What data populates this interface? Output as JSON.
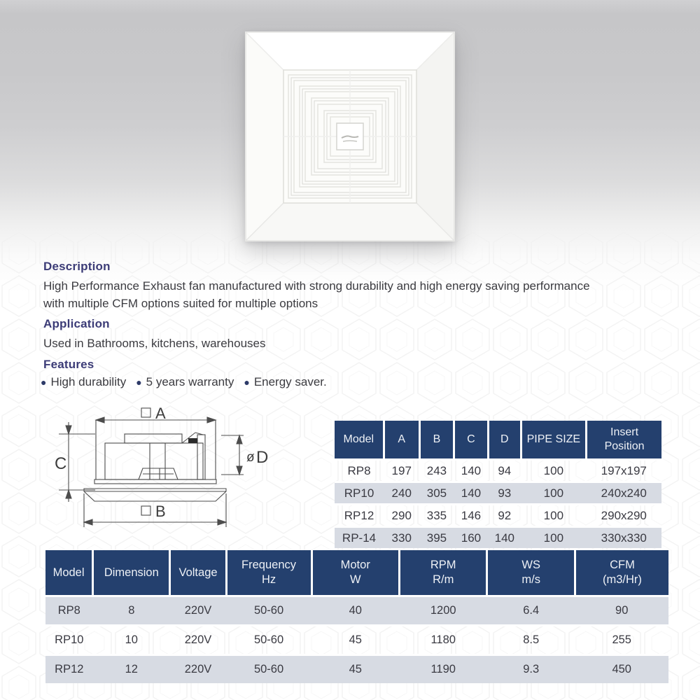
{
  "product": {
    "description_heading": "Description",
    "description_text": "High Performance Exhaust fan manufactured with strong durability and high energy saving performance with multiple CFM options suited for multiple options",
    "application_heading": "Application",
    "application_text": "Used in Bathrooms, kitchens, warehouses",
    "features_heading": "Features",
    "features": [
      "High durability",
      "5 years warranty",
      "Energy saver."
    ],
    "bullet_glyph": "●"
  },
  "diagram": {
    "label_a": "A",
    "label_b": "B",
    "label_c": "C",
    "label_d_prefix": "ø",
    "label_d": "D"
  },
  "dimension_table": {
    "headers": [
      "Model",
      "A",
      "B",
      "C",
      "D",
      "PIPE SIZE",
      "Insert\nPosition"
    ],
    "rows": [
      [
        "RP8",
        "197",
        "243",
        "140",
        "94",
        "100",
        "197x197"
      ],
      [
        "RP10",
        "240",
        "305",
        "140",
        "93",
        "100",
        "240x240"
      ],
      [
        "RP12",
        "290",
        "335",
        "146",
        "92",
        "100",
        "290x290"
      ],
      [
        "RP-14",
        "330",
        "395",
        "160",
        "140",
        "100",
        "330x330"
      ]
    ]
  },
  "spec_table": {
    "headers": [
      "Model",
      "Dimension",
      "Voltage",
      "Frequency\nHz",
      "Motor\nW",
      "RPM\nR/m",
      "WS\nm/s",
      "CFM\n(m3/Hr)"
    ],
    "rows": [
      [
        "RP8",
        "8",
        "220V",
        "50-60",
        "40",
        "1200",
        "6.4",
        "90"
      ],
      [
        "RP10",
        "10",
        "220V",
        "50-60",
        "45",
        "1180",
        "8.5",
        "255"
      ],
      [
        "RP12",
        "12",
        "220V",
        "50-60",
        "45",
        "1190",
        "9.3",
        "450"
      ]
    ]
  },
  "colors": {
    "table_header_bg": "#24406e",
    "table_row_alt": "#d7dbe3",
    "heading_text": "#3c3c77",
    "body_text": "#3b3b40"
  }
}
